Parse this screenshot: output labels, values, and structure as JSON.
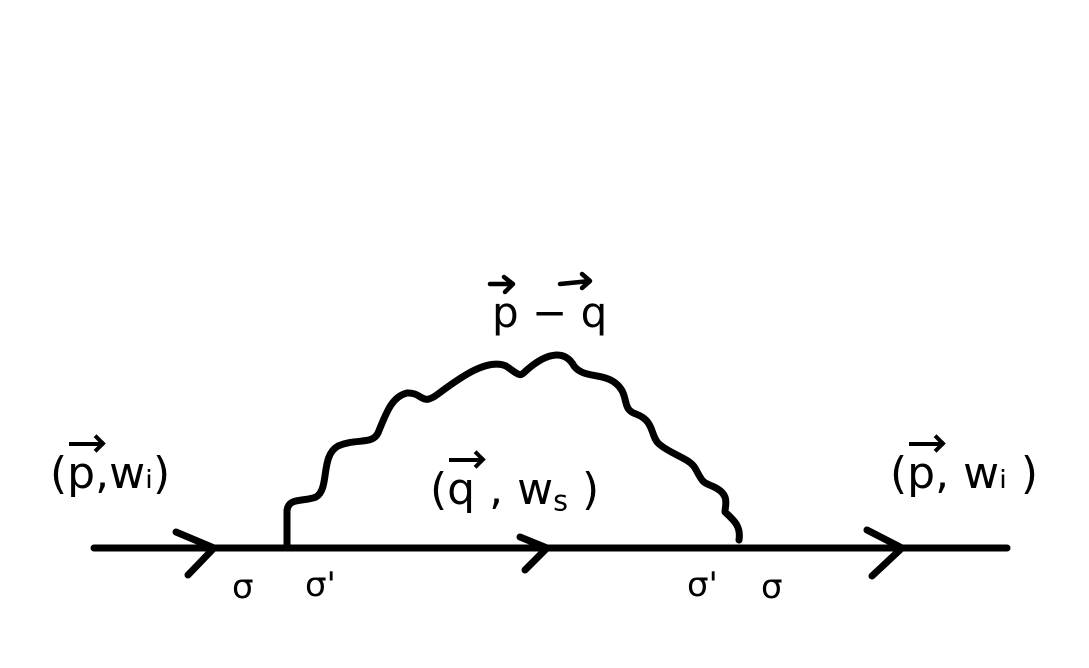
{
  "diagram": {
    "labels": {
      "left_momentum_open": "(",
      "left_momentum_vector": "p",
      "left_momentum_rest": ",wᵢ)",
      "internal_momentum_open": "(",
      "internal_momentum_vector": "q",
      "internal_momentum_middle": " , w",
      "internal_momentum_sub": "s",
      "internal_momentum_close": " )",
      "right_momentum_open": "(",
      "right_momentum_vector": "p",
      "right_momentum_rest": ", wᵢ )",
      "photon_p": "p",
      "photon_minus": " − ",
      "photon_q": "q",
      "spin_left_outer": "σ",
      "spin_left_inner": "σ'",
      "spin_right_inner": "σ'",
      "spin_right_outer": "σ"
    },
    "elements": {
      "fermion_line": "straight fermion propagator",
      "photon_line": "wavy boson propagator",
      "arrows": [
        "right-arrow",
        "right-arrow",
        "right-arrow"
      ]
    }
  }
}
